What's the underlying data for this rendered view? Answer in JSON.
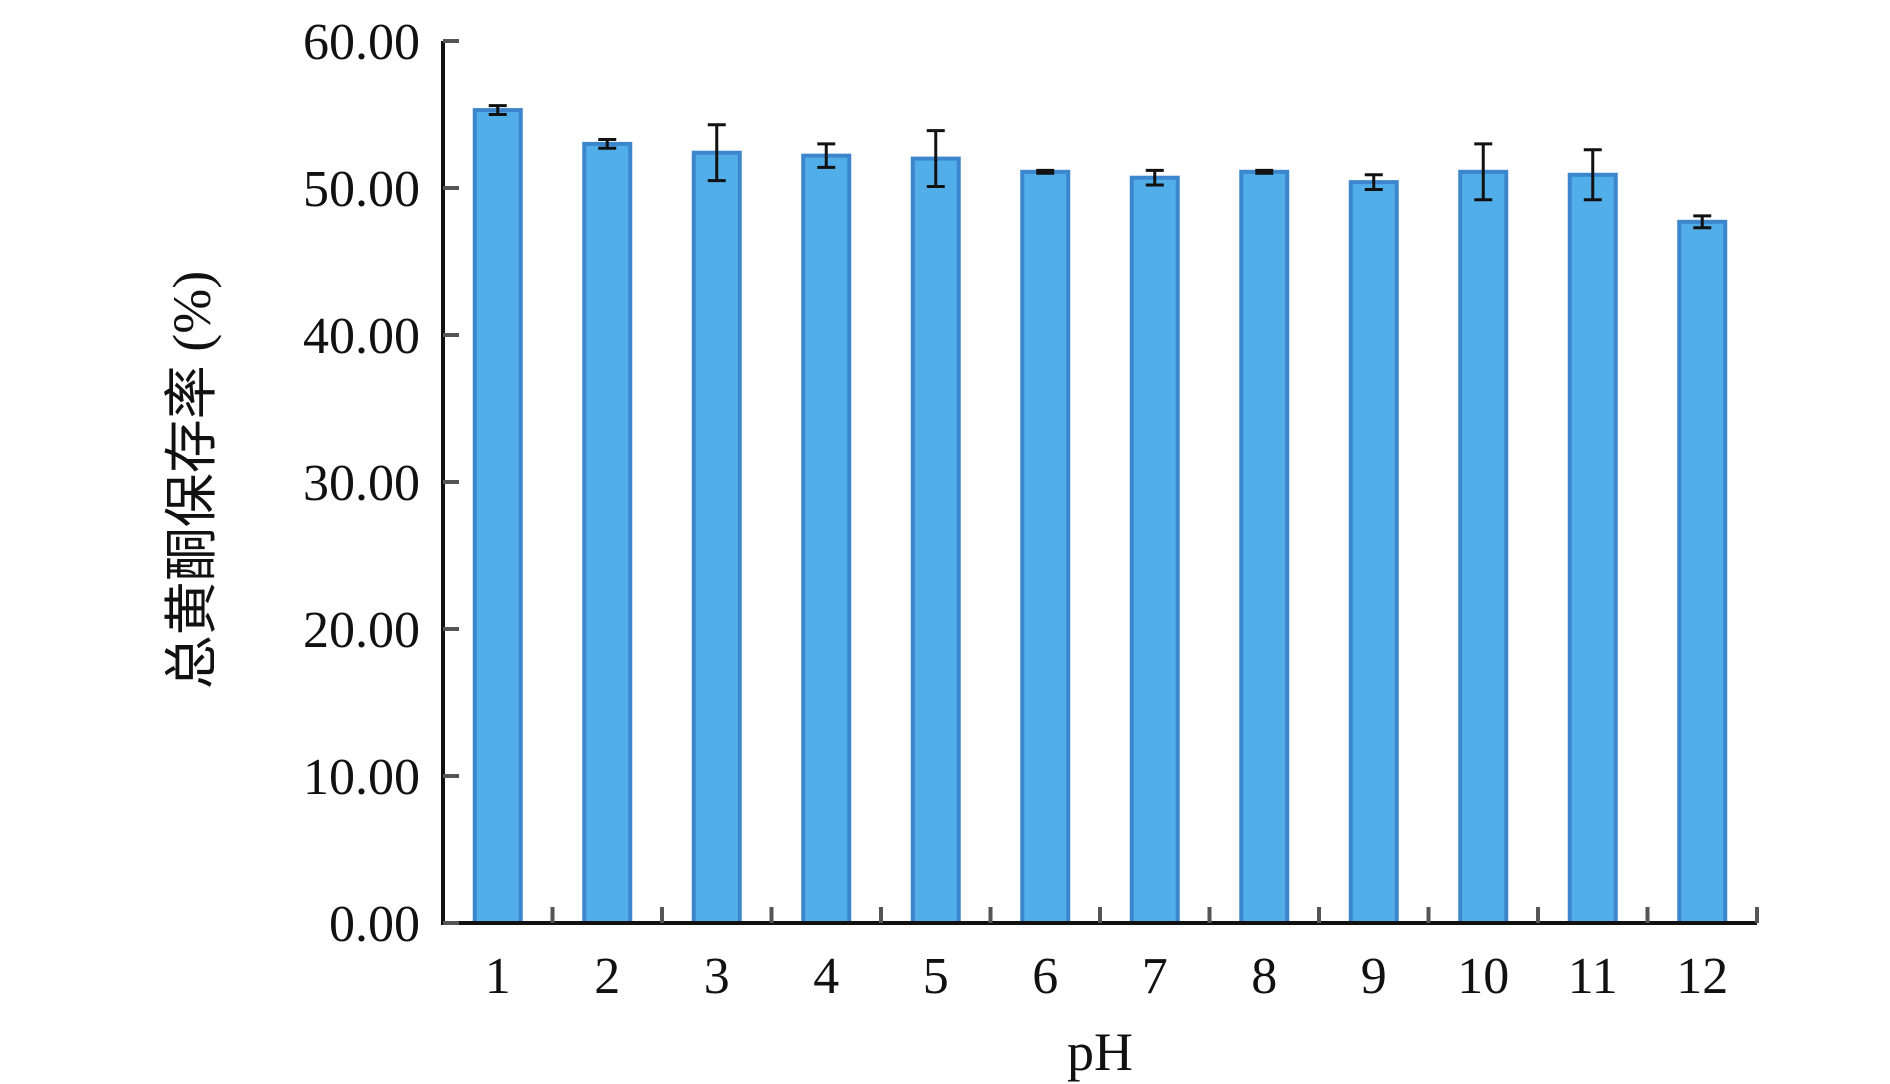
{
  "chart_data": {
    "type": "bar",
    "xlabel": "pH",
    "ylabel": "总黄酮保存率 (%)",
    "ylim": [
      0,
      60
    ],
    "yticks": [
      "0.00",
      "10.00",
      "20.00",
      "30.00",
      "40.00",
      "50.00",
      "60.00"
    ],
    "categories": [
      "1",
      "2",
      "3",
      "4",
      "5",
      "6",
      "7",
      "8",
      "9",
      "10",
      "11",
      "12"
    ],
    "values": [
      55.3,
      53.0,
      52.4,
      52.2,
      52.0,
      51.1,
      50.7,
      51.1,
      50.4,
      51.1,
      50.9,
      47.7
    ],
    "errors": [
      0.3,
      0.3,
      1.9,
      0.8,
      1.9,
      0.1,
      0.5,
      0.1,
      0.5,
      1.9,
      1.7,
      0.4
    ],
    "bar_color": "#52aee8",
    "bar_edge_color": "#3b86cc",
    "grid": false,
    "legend": "none"
  }
}
